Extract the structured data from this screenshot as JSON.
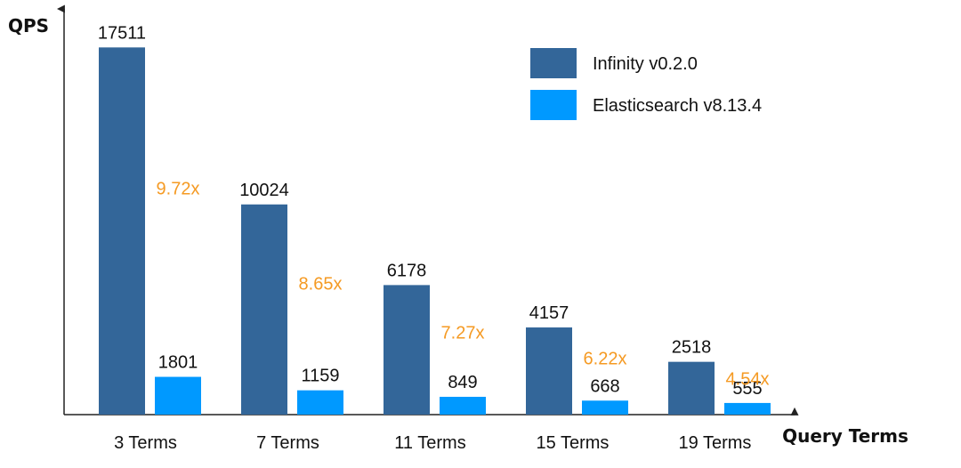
{
  "chart_data": {
    "type": "bar",
    "title": "",
    "ylabel": "QPS",
    "xlabel": "Query Terms",
    "ylim": [
      0,
      18500
    ],
    "grid": false,
    "legend_position": "top-right",
    "categories": [
      "3 Terms",
      "7 Terms",
      "11 Terms",
      "15 Terms",
      "19 Terms"
    ],
    "series": [
      {
        "name": "Infinity v0.2.0",
        "color": "#336699",
        "values": [
          17511,
          10024,
          6178,
          4157,
          2518
        ]
      },
      {
        "name": "Elasticsearch v8.13.4",
        "color": "#0099FF",
        "values": [
          1801,
          1159,
          849,
          668,
          555
        ]
      }
    ],
    "annotations": [
      "9.72x",
      "8.65x",
      "7.27x",
      "6.22x",
      "4.54x"
    ],
    "annotation_color": "#F59A23"
  }
}
